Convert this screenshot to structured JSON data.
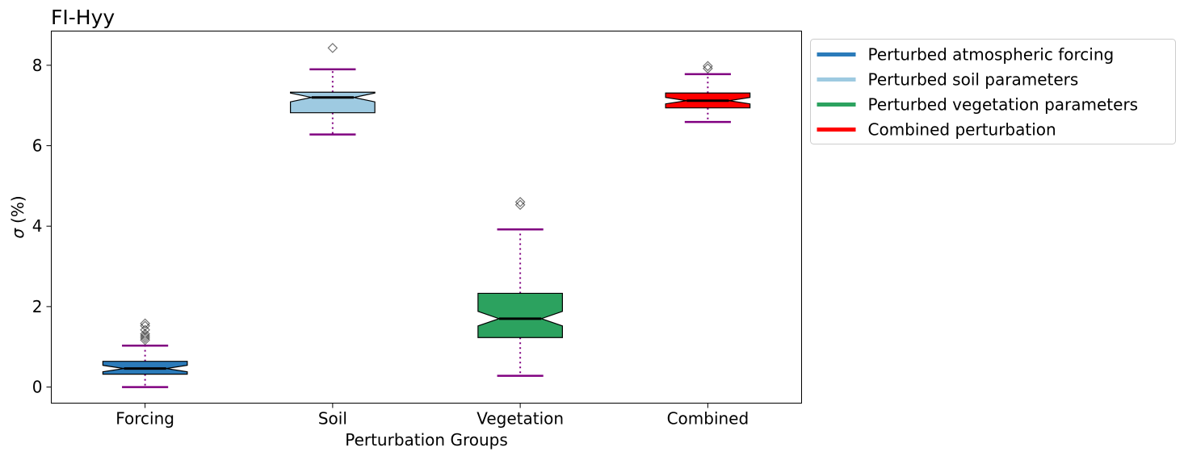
{
  "chart_data": {
    "type": "boxplot",
    "title": "FI-Hyy",
    "xlabel": "Perturbation Groups",
    "ylabel_symbol": "σ",
    "ylabel_unit": "(%)",
    "ylim": [
      -0.4,
      8.85
    ],
    "yticks": [
      0,
      2,
      4,
      6,
      8
    ],
    "notched": true,
    "grid": false,
    "legend_position": "outside-right",
    "whisker_color": "#800080",
    "median_color": "#000000",
    "categories": [
      "Forcing",
      "Soil",
      "Vegetation",
      "Combined"
    ],
    "series": [
      {
        "name": "Perturbed atmospheric forcing",
        "category": "Forcing",
        "color": "#2b7bba",
        "whisker_low": 0.0,
        "q1": 0.32,
        "median": 0.46,
        "q3": 0.64,
        "whisker_high": 1.03,
        "notch_low": 0.38,
        "notch_high": 0.54,
        "outliers": [
          1.17,
          1.22,
          1.27,
          1.32,
          1.42,
          1.52,
          1.58
        ]
      },
      {
        "name": "Perturbed soil parameters",
        "category": "Soil",
        "color": "#9ecae1",
        "whisker_low": 6.28,
        "q1": 6.82,
        "median": 7.2,
        "q3": 7.33,
        "whisker_high": 7.9,
        "notch_low": 7.09,
        "notch_high": 7.31,
        "outliers": [
          8.43
        ]
      },
      {
        "name": "Perturbed vegetation parameters",
        "category": "Vegetation",
        "color": "#2ca25f",
        "whisker_low": 0.28,
        "q1": 1.23,
        "median": 1.7,
        "q3": 2.33,
        "whisker_high": 3.92,
        "notch_low": 1.52,
        "notch_high": 1.88,
        "outliers": [
          4.53,
          4.6
        ]
      },
      {
        "name": "Combined perturbation",
        "category": "Combined",
        "color": "#ff0000",
        "whisker_low": 6.59,
        "q1": 6.94,
        "median": 7.12,
        "q3": 7.31,
        "whisker_high": 7.78,
        "notch_low": 7.04,
        "notch_high": 7.2,
        "outliers": [
          7.92,
          7.98
        ]
      }
    ]
  }
}
